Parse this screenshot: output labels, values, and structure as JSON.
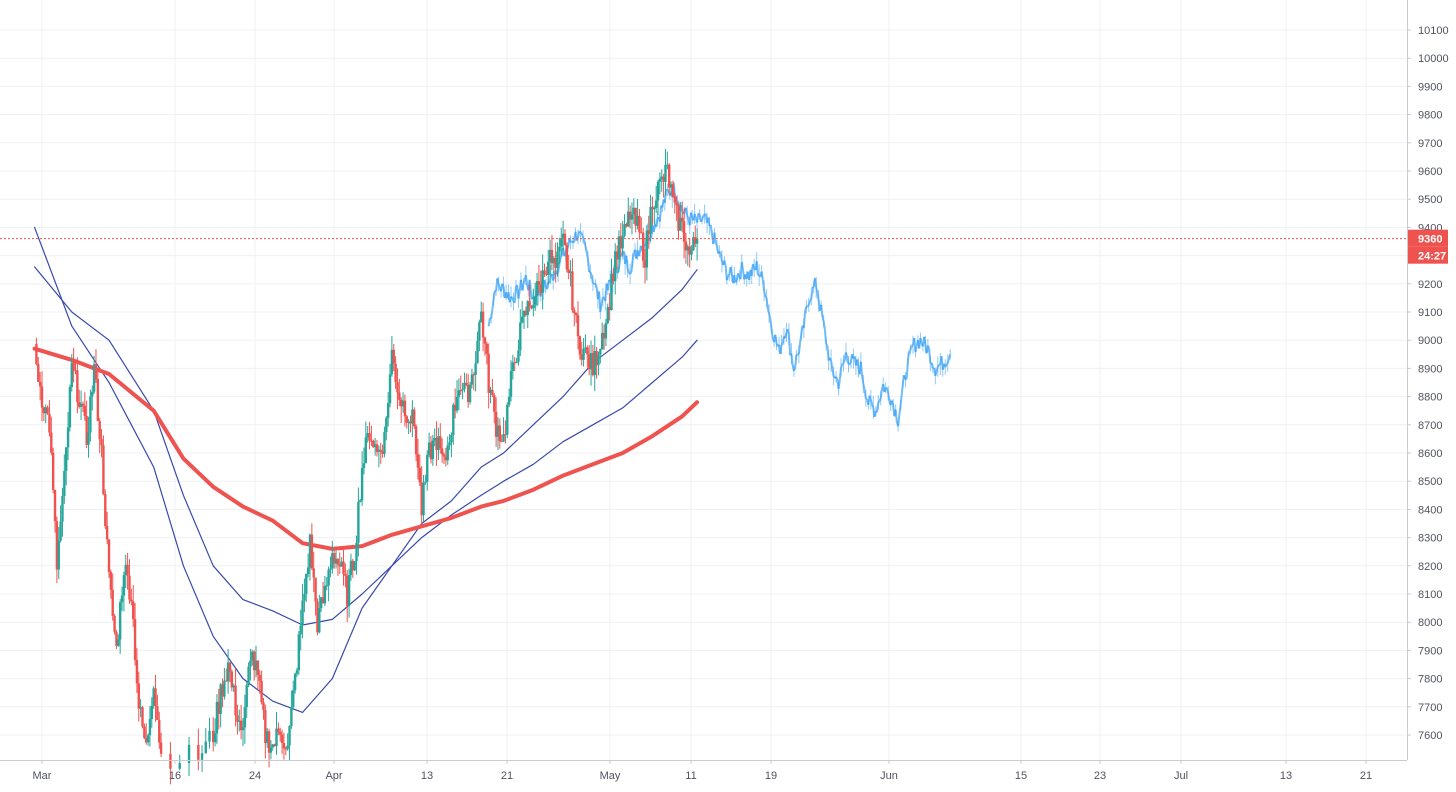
{
  "chart_data": {
    "type": "candlestick",
    "title": "",
    "x_axis": {
      "tick_labels": [
        "Mar",
        "16",
        "24",
        "Apr",
        "13",
        "21",
        "May",
        "11",
        "19",
        "Jun",
        "15",
        "23",
        "Jul",
        "13",
        "21"
      ]
    },
    "y_axis": {
      "position": "right",
      "range": [
        7525,
        10175
      ],
      "tick_labels": [
        "7600",
        "7700",
        "7800",
        "7900",
        "8000",
        "8100",
        "8200",
        "8300",
        "8400",
        "8500",
        "8600",
        "8700",
        "8800",
        "8900",
        "9000",
        "9100",
        "9200",
        "9300",
        "9400",
        "9500",
        "9600",
        "9700",
        "9800",
        "9900",
        "10000",
        "10100"
      ]
    },
    "grid": true,
    "current_price": {
      "value": 9360,
      "label": "9360",
      "countdown": "24:27",
      "color": "#ef5350"
    },
    "candles": {
      "up_color": "#26a69a",
      "down_color": "#ef5350",
      "path": [
        {
          "x": "Feb 29",
          "price": 8950
        },
        {
          "x": "Mar 1",
          "price": 8800
        },
        {
          "x": "Mar 2",
          "price": 8700
        },
        {
          "x": "Mar 3",
          "price": 8200
        },
        {
          "x": "Mar 4",
          "price": 8500
        },
        {
          "x": "Mar 5",
          "price": 8900
        },
        {
          "x": "Mar 6",
          "price": 8800
        },
        {
          "x": "Mar 7",
          "price": 8650
        },
        {
          "x": "Mar 8",
          "price": 8900
        },
        {
          "x": "Mar 9",
          "price": 8600
        },
        {
          "x": "Mar 10",
          "price": 8150
        },
        {
          "x": "Mar 11",
          "price": 7900
        },
        {
          "x": "Mar 12",
          "price": 8200
        },
        {
          "x": "Mar 13",
          "price": 8100
        },
        {
          "x": "Mar 14",
          "price": 7700
        },
        {
          "x": "Mar 15",
          "price": 7550
        },
        {
          "x": "Mar 16",
          "price": 7800
        },
        {
          "x": "Mar 17",
          "price": 7525
        },
        {
          "x": "Mar 22",
          "price": 7525
        },
        {
          "x": "Mar 24",
          "price": 7600
        },
        {
          "x": "Mar 25",
          "price": 7750
        },
        {
          "x": "Mar 26",
          "price": 7850
        },
        {
          "x": "Mar 27",
          "price": 7700
        },
        {
          "x": "Mar 28",
          "price": 7600
        },
        {
          "x": "Mar 29",
          "price": 7900
        },
        {
          "x": "Mar 30",
          "price": 7800
        },
        {
          "x": "Mar 31",
          "price": 7600
        },
        {
          "x": "Apr 1",
          "price": 7560
        },
        {
          "x": "Apr 2",
          "price": 7620
        },
        {
          "x": "Apr 3",
          "price": 7550
        },
        {
          "x": "Apr 4",
          "price": 7800
        },
        {
          "x": "Apr 5",
          "price": 8050
        },
        {
          "x": "Apr 6",
          "price": 8280
        },
        {
          "x": "Apr 7",
          "price": 8000
        },
        {
          "x": "Apr 8",
          "price": 8100
        },
        {
          "x": "Apr 9",
          "price": 8250
        },
        {
          "x": "Apr 10",
          "price": 8200
        },
        {
          "x": "Apr 11",
          "price": 8100
        },
        {
          "x": "Apr 12",
          "price": 8250
        },
        {
          "x": "Apr 13",
          "price": 8550
        },
        {
          "x": "Apr 14",
          "price": 8680
        },
        {
          "x": "Apr 15",
          "price": 8600
        },
        {
          "x": "Apr 16",
          "price": 8650
        },
        {
          "x": "Apr 17",
          "price": 8950
        },
        {
          "x": "Apr 18",
          "price": 8800
        },
        {
          "x": "Apr 19",
          "price": 8750
        },
        {
          "x": "Apr 20",
          "price": 8700
        },
        {
          "x": "Apr 21",
          "price": 8400
        },
        {
          "x": "Apr 22",
          "price": 8600
        },
        {
          "x": "Apr 23",
          "price": 8650
        },
        {
          "x": "Apr 24",
          "price": 8550
        },
        {
          "x": "Apr 25",
          "price": 8700
        },
        {
          "x": "Apr 26",
          "price": 8850
        },
        {
          "x": "Apr 27",
          "price": 8800
        },
        {
          "x": "Apr 28",
          "price": 8900
        },
        {
          "x": "Apr 29",
          "price": 9100
        },
        {
          "x": "Apr 30",
          "price": 8850
        },
        {
          "x": "May 1",
          "price": 8700
        },
        {
          "x": "May 2",
          "price": 8650
        },
        {
          "x": "May 3",
          "price": 8850
        },
        {
          "x": "May 4",
          "price": 9000
        },
        {
          "x": "May 5",
          "price": 9100
        },
        {
          "x": "May 6",
          "price": 9150
        },
        {
          "x": "May 7",
          "price": 9200
        },
        {
          "x": "May 8",
          "price": 9300
        },
        {
          "x": "May 9",
          "price": 9250
        },
        {
          "x": "May 10",
          "price": 9350
        },
        {
          "x": "May 11",
          "price": 9200
        },
        {
          "x": "May 12",
          "price": 9000
        },
        {
          "x": "May 13",
          "price": 8950
        },
        {
          "x": "May 14",
          "price": 8900
        },
        {
          "x": "May 15",
          "price": 9000
        },
        {
          "x": "May 16",
          "price": 9100
        },
        {
          "x": "May 17",
          "price": 9300
        },
        {
          "x": "May 18",
          "price": 9350
        },
        {
          "x": "May 19",
          "price": 9450
        },
        {
          "x": "May 20",
          "price": 9400
        },
        {
          "x": "May 21",
          "price": 9300
        },
        {
          "x": "May 22",
          "price": 9500
        },
        {
          "x": "May 23",
          "price": 9550
        },
        {
          "x": "May 24",
          "price": 9600
        },
        {
          "x": "May 25",
          "price": 9450
        },
        {
          "x": "May 26",
          "price": 9400
        },
        {
          "x": "May 27",
          "price": 9300
        },
        {
          "x": "May 28",
          "price": 9360
        }
      ]
    },
    "moving_averages": [
      {
        "color": "#3949ab",
        "path": [
          {
            "x": "Feb 29",
            "price": 9400
          },
          {
            "x": "Mar 5",
            "price": 9050
          },
          {
            "x": "Mar 10",
            "price": 8850
          },
          {
            "x": "Mar 16",
            "price": 8550
          },
          {
            "x": "Mar 20",
            "price": 8200
          },
          {
            "x": "Mar 24",
            "price": 7950
          },
          {
            "x": "Mar 28",
            "price": 7800
          },
          {
            "x": "Apr 1",
            "price": 7720
          },
          {
            "x": "Apr 5",
            "price": 7680
          },
          {
            "x": "Apr 9",
            "price": 7800
          },
          {
            "x": "Apr 13",
            "price": 8050
          },
          {
            "x": "Apr 17",
            "price": 8200
          },
          {
            "x": "Apr 21",
            "price": 8350
          },
          {
            "x": "Apr 25",
            "price": 8430
          },
          {
            "x": "Apr 29",
            "price": 8550
          },
          {
            "x": "May 2",
            "price": 8600
          },
          {
            "x": "May 6",
            "price": 8700
          },
          {
            "x": "May 10",
            "price": 8800
          },
          {
            "x": "May 14",
            "price": 8920
          },
          {
            "x": "May 18",
            "price": 9000
          },
          {
            "x": "May 22",
            "price": 9080
          },
          {
            "x": "May 26",
            "price": 9180
          },
          {
            "x": "May 28",
            "price": 9250
          }
        ]
      },
      {
        "color": "#3949ab",
        "path": [
          {
            "x": "Feb 29",
            "price": 9260
          },
          {
            "x": "Mar 5",
            "price": 9100
          },
          {
            "x": "Mar 10",
            "price": 9000
          },
          {
            "x": "Mar 16",
            "price": 8750
          },
          {
            "x": "Mar 20",
            "price": 8450
          },
          {
            "x": "Mar 24",
            "price": 8200
          },
          {
            "x": "Mar 28",
            "price": 8080
          },
          {
            "x": "Apr 1",
            "price": 8040
          },
          {
            "x": "Apr 5",
            "price": 7990
          },
          {
            "x": "Apr 9",
            "price": 8010
          },
          {
            "x": "Apr 13",
            "price": 8100
          },
          {
            "x": "Apr 17",
            "price": 8200
          },
          {
            "x": "Apr 21",
            "price": 8300
          },
          {
            "x": "Apr 25",
            "price": 8380
          },
          {
            "x": "Apr 29",
            "price": 8450
          },
          {
            "x": "May 2",
            "price": 8500
          },
          {
            "x": "May 6",
            "price": 8560
          },
          {
            "x": "May 10",
            "price": 8640
          },
          {
            "x": "May 14",
            "price": 8700
          },
          {
            "x": "May 18",
            "price": 8760
          },
          {
            "x": "May 22",
            "price": 8850
          },
          {
            "x": "May 26",
            "price": 8940
          },
          {
            "x": "May 28",
            "price": 9000
          }
        ]
      },
      {
        "color": "#ef5350",
        "path": [
          {
            "x": "Feb 29",
            "price": 8970
          },
          {
            "x": "Mar 5",
            "price": 8930
          },
          {
            "x": "Mar 10",
            "price": 8880
          },
          {
            "x": "Mar 16",
            "price": 8750
          },
          {
            "x": "Mar 20",
            "price": 8580
          },
          {
            "x": "Mar 24",
            "price": 8480
          },
          {
            "x": "Mar 28",
            "price": 8410
          },
          {
            "x": "Apr 1",
            "price": 8360
          },
          {
            "x": "Apr 5",
            "price": 8280
          },
          {
            "x": "Apr 9",
            "price": 8260
          },
          {
            "x": "Apr 13",
            "price": 8270
          },
          {
            "x": "Apr 17",
            "price": 8310
          },
          {
            "x": "Apr 21",
            "price": 8340
          },
          {
            "x": "Apr 25",
            "price": 8370
          },
          {
            "x": "Apr 29",
            "price": 8410
          },
          {
            "x": "May 2",
            "price": 8430
          },
          {
            "x": "May 6",
            "price": 8470
          },
          {
            "x": "May 10",
            "price": 8520
          },
          {
            "x": "May 14",
            "price": 8560
          },
          {
            "x": "May 18",
            "price": 8600
          },
          {
            "x": "May 22",
            "price": 8660
          },
          {
            "x": "May 26",
            "price": 8730
          },
          {
            "x": "May 28",
            "price": 8780
          }
        ]
      }
    ],
    "projection": {
      "color": "#42a5f5",
      "path": [
        {
          "x": "Apr 30",
          "price": 9050
        },
        {
          "x": "May 1",
          "price": 9200
        },
        {
          "x": "May 2",
          "price": 9180
        },
        {
          "x": "May 3",
          "price": 9150
        },
        {
          "x": "May 4",
          "price": 9170
        },
        {
          "x": "May 5",
          "price": 9220
        },
        {
          "x": "May 6",
          "price": 9150
        },
        {
          "x": "May 7",
          "price": 9180
        },
        {
          "x": "May 8",
          "price": 9200
        },
        {
          "x": "May 9",
          "price": 9250
        },
        {
          "x": "May 10",
          "price": 9300
        },
        {
          "x": "May 11",
          "price": 9350
        },
        {
          "x": "May 12",
          "price": 9380
        },
        {
          "x": "May 13",
          "price": 9320
        },
        {
          "x": "May 14",
          "price": 9220
        },
        {
          "x": "May 15",
          "price": 9130
        },
        {
          "x": "May 16",
          "price": 9180
        },
        {
          "x": "May 17",
          "price": 9250
        },
        {
          "x": "May 18",
          "price": 9300
        },
        {
          "x": "May 19",
          "price": 9260
        },
        {
          "x": "May 20",
          "price": 9320
        },
        {
          "x": "May 21",
          "price": 9350
        },
        {
          "x": "May 22",
          "price": 9400
        },
        {
          "x": "May 23",
          "price": 9450
        },
        {
          "x": "May 24",
          "price": 9520
        },
        {
          "x": "May 25",
          "price": 9540
        },
        {
          "x": "May 26",
          "price": 9460
        },
        {
          "x": "May 27",
          "price": 9430
        },
        {
          "x": "May 28",
          "price": 9420
        },
        {
          "x": "May 29",
          "price": 9430
        },
        {
          "x": "May 30",
          "price": 9380
        },
        {
          "x": "May 31",
          "price": 9300
        },
        {
          "x": "Jun 1",
          "price": 9240
        },
        {
          "x": "Jun 2",
          "price": 9220
        },
        {
          "x": "Jun 3",
          "price": 9250
        },
        {
          "x": "Jun 4",
          "price": 9230
        },
        {
          "x": "Jun 5",
          "price": 9260
        },
        {
          "x": "Jun 6",
          "price": 9200
        },
        {
          "x": "Jun 7",
          "price": 9050
        },
        {
          "x": "Jun 8",
          "price": 8960
        },
        {
          "x": "Jun 9",
          "price": 9050
        },
        {
          "x": "Jun 10",
          "price": 8900
        },
        {
          "x": "Jun 11",
          "price": 9000
        },
        {
          "x": "Jun 12",
          "price": 9150
        },
        {
          "x": "Jun 13",
          "price": 9200
        },
        {
          "x": "Jun 14",
          "price": 9050
        },
        {
          "x": "Jun 15",
          "price": 8900
        },
        {
          "x": "Jun 16",
          "price": 8850
        },
        {
          "x": "Jun 17",
          "price": 8950
        },
        {
          "x": "Jun 18",
          "price": 8920
        },
        {
          "x": "Jun 19",
          "price": 8900
        },
        {
          "x": "Jun 20",
          "price": 8780
        },
        {
          "x": "Jun 21",
          "price": 8750
        },
        {
          "x": "Jun 22",
          "price": 8840
        },
        {
          "x": "Jun 23",
          "price": 8800
        },
        {
          "x": "Jun 24",
          "price": 8720
        },
        {
          "x": "Jun 25",
          "price": 8880
        },
        {
          "x": "Jun 26",
          "price": 8980
        },
        {
          "x": "Jun 27",
          "price": 9000
        },
        {
          "x": "Jun 28",
          "price": 8970
        },
        {
          "x": "Jun 29",
          "price": 8900
        },
        {
          "x": "Jun 30",
          "price": 8920
        },
        {
          "x": "Jul 1",
          "price": 8950
        }
      ]
    }
  }
}
